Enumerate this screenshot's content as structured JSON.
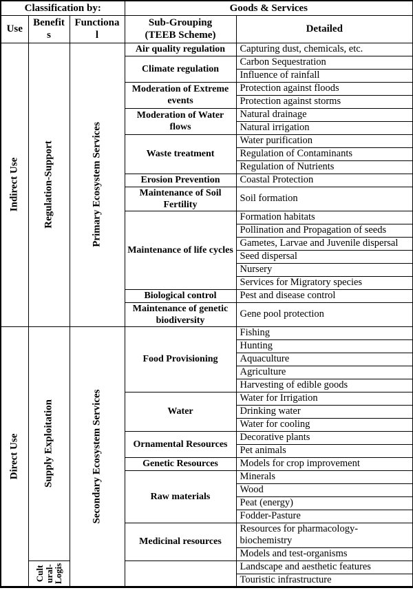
{
  "header": {
    "classification_by": "Classification by:",
    "goods_services": "Goods & Services",
    "col_use": "Use",
    "col_benefits": "Benefit\ns",
    "col_functional": "Functiona\nl",
    "col_subgrouping": "Sub-Grouping\n(TEEB Scheme)",
    "col_detailed": "Detailed"
  },
  "sections": [
    {
      "use": "Indirect Use",
      "functional": "Primary Ecosystem Services",
      "benefit_spans": [
        {
          "label": "Regulation-Support",
          "groups": [
            0,
            9
          ]
        }
      ],
      "groups": [
        {
          "name": "Air quality regulation",
          "details": [
            "Capturing dust, chemicals, etc."
          ]
        },
        {
          "name": "Climate regulation",
          "details": [
            "Carbon Sequestration",
            "Influence of rainfall"
          ]
        },
        {
          "name": "Moderation of Extreme events",
          "details": [
            "Protection against floods",
            "Protection against storms"
          ]
        },
        {
          "name": "Moderation of Water flows",
          "details": [
            "Natural drainage",
            "Natural irrigation"
          ]
        },
        {
          "name": "Waste treatment",
          "details": [
            "Water purification",
            "Regulation of Contaminants",
            "Regulation of Nutrients"
          ]
        },
        {
          "name": "Erosion Prevention",
          "details": [
            "Coastal Protection"
          ]
        },
        {
          "name": "Maintenance of Soil Fertility",
          "details": [
            "Soil formation"
          ]
        },
        {
          "name": "Maintenance of life cycles",
          "details": [
            "Formation habitats",
            "Pollination and Propagation of seeds",
            "Gametes, Larvae and Juvenile dispersal",
            "Seed dispersal",
            "Nursery",
            "Services for Migratory species"
          ]
        },
        {
          "name": "Biological control",
          "details": [
            "Pest and disease control"
          ]
        },
        {
          "name": "Maintenance of genetic biodiversity",
          "details": [
            "Gene pool protection"
          ]
        }
      ]
    },
    {
      "use": "Direct Use",
      "functional": "Secondary Ecosystem Services",
      "benefit_spans": [
        {
          "label": "Supply Exploitation",
          "groups": [
            0,
            5
          ]
        },
        {
          "label": "Cult\nural-\nLogis",
          "groups": [
            6,
            6
          ]
        }
      ],
      "groups": [
        {
          "name": "Food Provisioning",
          "details": [
            "Fishing",
            "Hunting",
            "Aquaculture",
            "Agriculture",
            "Harvesting of edible goods"
          ]
        },
        {
          "name": "Water",
          "details": [
            "Water for Irrigation",
            "Drinking water",
            "Water for cooling"
          ]
        },
        {
          "name": "Ornamental Resources",
          "details": [
            "Decorative plants",
            "Pet animals"
          ]
        },
        {
          "name": "Genetic Resources",
          "details": [
            "Models for crop improvement"
          ]
        },
        {
          "name": "Raw materials",
          "details": [
            "Minerals",
            "Wood",
            "Peat (energy)",
            "Fodder-Pasture"
          ]
        },
        {
          "name": "Medicinal resources",
          "details": [
            "Resources for pharmacology-biochemistry",
            "Models and test-organisms"
          ]
        },
        {
          "name": "",
          "details": [
            "Landscape and aesthetic features",
            "Touristic infrastructure"
          ]
        }
      ]
    }
  ]
}
